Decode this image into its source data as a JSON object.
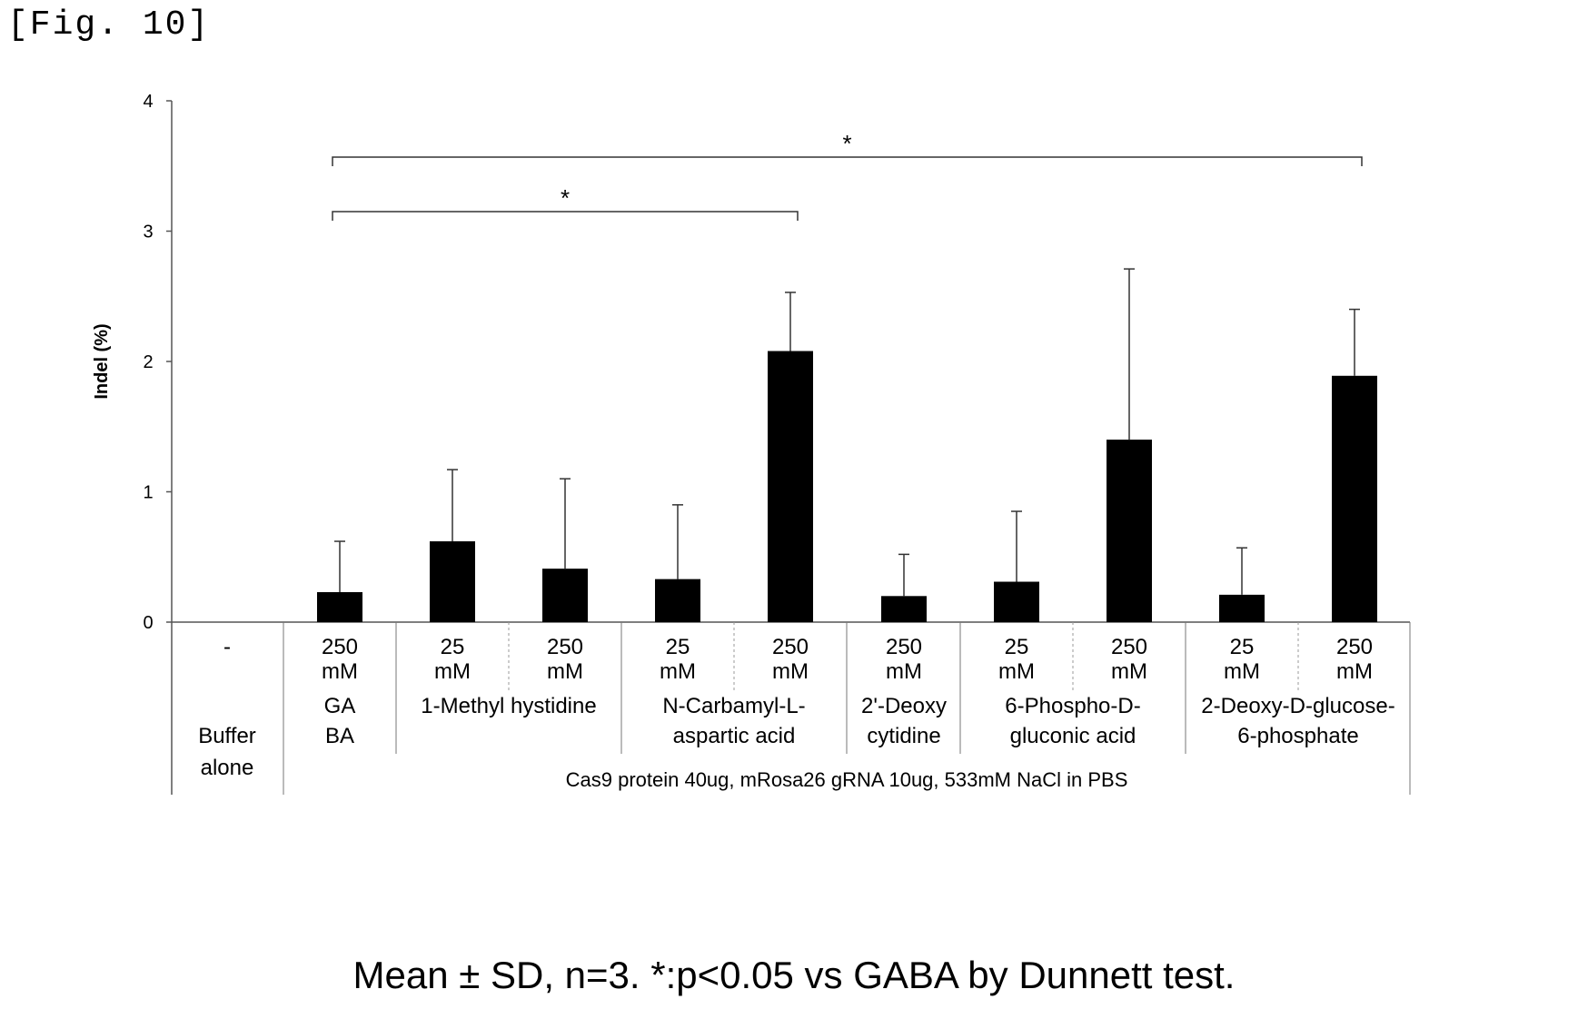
{
  "figure": {
    "label": "[Fig. 10]",
    "caption": "Mean ± SD, n=3. *:p<0.05 vs GABA by Dunnett test."
  },
  "chart_data": {
    "type": "bar",
    "ylabel": "Indel (%)",
    "ylim": [
      0,
      4
    ],
    "yticks": [
      0,
      1,
      2,
      3,
      4
    ],
    "grid": false,
    "bars": [
      {
        "dose": "-",
        "value": 0,
        "error": 0
      },
      {
        "dose_value": "250",
        "dose_unit": "mM",
        "value": 0.23,
        "error": 0.39
      },
      {
        "dose_value": "25",
        "dose_unit": "mM",
        "value": 0.62,
        "error": 0.55
      },
      {
        "dose_value": "250",
        "dose_unit": "mM",
        "value": 0.41,
        "error": 0.69
      },
      {
        "dose_value": "25",
        "dose_unit": "mM",
        "value": 0.33,
        "error": 0.57
      },
      {
        "dose_value": "250",
        "dose_unit": "mM",
        "value": 2.08,
        "error": 0.45
      },
      {
        "dose_value": "250",
        "dose_unit": "mM",
        "value": 0.2,
        "error": 0.32
      },
      {
        "dose_value": "25",
        "dose_unit": "mM",
        "value": 0.31,
        "error": 0.54
      },
      {
        "dose_value": "250",
        "dose_unit": "mM",
        "value": 1.4,
        "error": 1.31
      },
      {
        "dose_value": "25",
        "dose_unit": "mM",
        "value": 0.21,
        "error": 0.36
      },
      {
        "dose_value": "250",
        "dose_unit": "mM",
        "value": 1.89,
        "error": 0.51
      }
    ],
    "groups": [
      {
        "line1": "Buffer",
        "line2": "alone",
        "line3": ""
      },
      {
        "line1": "GA",
        "line2": "BA",
        "line3": ""
      },
      {
        "line1": "1-Methyl hystidine",
        "line2": "",
        "line3": ""
      },
      {
        "line1": "N-Carbamyl-L-",
        "line2": "aspartic acid",
        "line3": ""
      },
      {
        "line1": "2'-Deoxy",
        "line2": "cytidine",
        "line3": ""
      },
      {
        "line1": "6-Phospho-D-",
        "line2": "gluconic acid",
        "line3": ""
      },
      {
        "line1": "2-Deoxy-D-glucose-",
        "line2": "6-phosphate",
        "line3": ""
      }
    ],
    "common_label": "Cas9 protein 40ug, mRosa26 gRNA 10ug, 533mM NaCl in PBS",
    "significance": [
      {
        "from_bar": 1,
        "to_bar": 5,
        "label": "*"
      },
      {
        "from_bar": 1,
        "to_bar": 10,
        "label": "*"
      }
    ]
  }
}
